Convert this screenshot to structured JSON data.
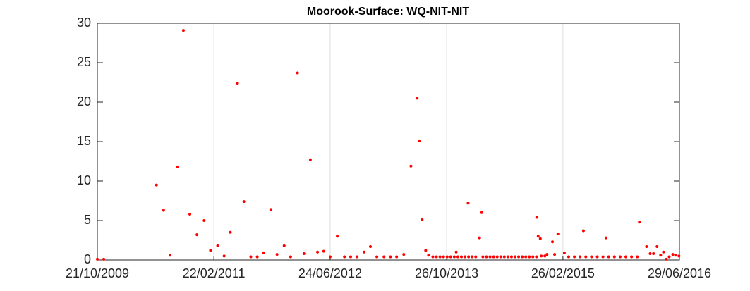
{
  "chart_data": {
    "type": "scatter",
    "title": "Moorook-Surface: WQ-NIT-NIT",
    "color": "#ff0000",
    "grid": "x",
    "xlim": [
      "2009-10-21",
      "2016-06-29"
    ],
    "xticks": [
      {
        "value": "2009-10-21",
        "label": "21/10/2009"
      },
      {
        "value": "2011-02-22",
        "label": "22/02/2011"
      },
      {
        "value": "2012-06-24",
        "label": "24/06/2012"
      },
      {
        "value": "2013-10-26",
        "label": "26/10/2013"
      },
      {
        "value": "2015-02-26",
        "label": "26/02/2015"
      },
      {
        "value": "2016-06-29",
        "label": "29/06/2016"
      }
    ],
    "ylim": [
      0,
      30
    ],
    "yticks": [
      0,
      5,
      10,
      15,
      20,
      25,
      30
    ],
    "x": [
      "2009-10-21",
      "2009-11-17",
      "2010-06-26",
      "2010-07-26",
      "2010-08-22",
      "2010-09-21",
      "2010-10-17",
      "2010-11-13",
      "2010-12-13",
      "2011-01-12",
      "2011-02-08",
      "2011-03-10",
      "2011-04-06",
      "2011-05-02",
      "2011-06-01",
      "2011-06-28",
      "2011-07-27",
      "2011-08-23",
      "2011-09-19",
      "2011-10-19",
      "2011-11-14",
      "2011-12-14",
      "2012-01-10",
      "2012-02-08",
      "2012-03-06",
      "2012-04-02",
      "2012-05-02",
      "2012-05-28",
      "2012-06-24",
      "2012-07-24",
      "2012-08-23",
      "2012-09-18",
      "2012-10-15",
      "2012-11-14",
      "2012-12-10",
      "2013-01-06",
      "2013-02-05",
      "2013-03-04",
      "2013-03-30",
      "2013-04-29",
      "2013-05-29",
      "2013-06-24",
      "2013-07-03",
      "2013-07-15",
      "2013-07-30",
      "2013-08-11",
      "2013-08-29",
      "2013-09-13",
      "2013-09-28",
      "2013-10-13",
      "2013-10-28",
      "2013-11-12",
      "2013-11-27",
      "2013-12-05",
      "2013-12-12",
      "2013-12-27",
      "2014-01-11",
      "2014-01-24",
      "2014-01-26",
      "2014-02-10",
      "2014-02-25",
      "2014-03-13",
      "2014-03-22",
      "2014-03-27",
      "2014-04-11",
      "2014-04-26",
      "2014-05-11",
      "2014-05-26",
      "2014-06-10",
      "2014-06-25",
      "2014-07-10",
      "2014-07-25",
      "2014-08-09",
      "2014-08-24",
      "2014-09-08",
      "2014-09-23",
      "2014-10-08",
      "2014-10-23",
      "2014-11-07",
      "2014-11-08",
      "2014-11-14",
      "2014-11-23",
      "2014-11-27",
      "2014-12-12",
      "2014-12-21",
      "2015-01-13",
      "2015-01-22",
      "2015-02-05",
      "2015-03-04",
      "2015-03-22",
      "2015-04-15",
      "2015-05-09",
      "2015-05-23",
      "2015-06-02",
      "2015-06-26",
      "2015-07-20",
      "2015-08-13",
      "2015-08-26",
      "2015-09-06",
      "2015-09-30",
      "2015-10-24",
      "2015-11-17",
      "2015-12-11",
      "2016-01-04",
      "2016-01-13",
      "2016-02-12",
      "2016-02-27",
      "2016-03-12",
      "2016-03-27",
      "2016-04-11",
      "2016-04-23",
      "2016-05-05",
      "2016-05-17",
      "2016-06-01",
      "2016-06-13",
      "2016-06-27"
    ],
    "values": [
      0.1,
      0.1,
      9.5,
      6.3,
      0.6,
      11.8,
      29.1,
      5.8,
      3.2,
      5.0,
      1.2,
      1.8,
      0.5,
      3.5,
      22.4,
      7.4,
      0.4,
      0.4,
      0.9,
      6.4,
      0.7,
      1.8,
      0.4,
      23.7,
      0.8,
      12.7,
      1.0,
      1.1,
      0.4,
      3.0,
      0.4,
      0.4,
      0.4,
      1.0,
      1.7,
      0.4,
      0.4,
      0.4,
      0.4,
      0.7,
      11.9,
      20.5,
      15.1,
      5.1,
      1.2,
      0.6,
      0.4,
      0.4,
      0.4,
      0.4,
      0.4,
      0.4,
      0.4,
      1.0,
      0.4,
      0.4,
      0.4,
      7.2,
      0.4,
      0.4,
      0.4,
      2.8,
      6.0,
      0.4,
      0.4,
      0.4,
      0.4,
      0.4,
      0.4,
      0.4,
      0.4,
      0.4,
      0.4,
      0.4,
      0.4,
      0.4,
      0.4,
      0.4,
      0.4,
      5.4,
      3.0,
      2.7,
      0.5,
      0.5,
      0.7,
      2.3,
      0.7,
      3.3,
      0.9,
      0.4,
      0.4,
      0.4,
      3.7,
      0.4,
      0.4,
      0.4,
      0.4,
      2.8,
      0.4,
      0.4,
      0.4,
      0.4,
      0.4,
      0.4,
      4.8,
      1.7,
      0.8,
      0.8,
      1.7,
      0.6,
      1.0,
      0.1,
      0.4,
      0.7,
      0.6,
      0.5
    ]
  }
}
